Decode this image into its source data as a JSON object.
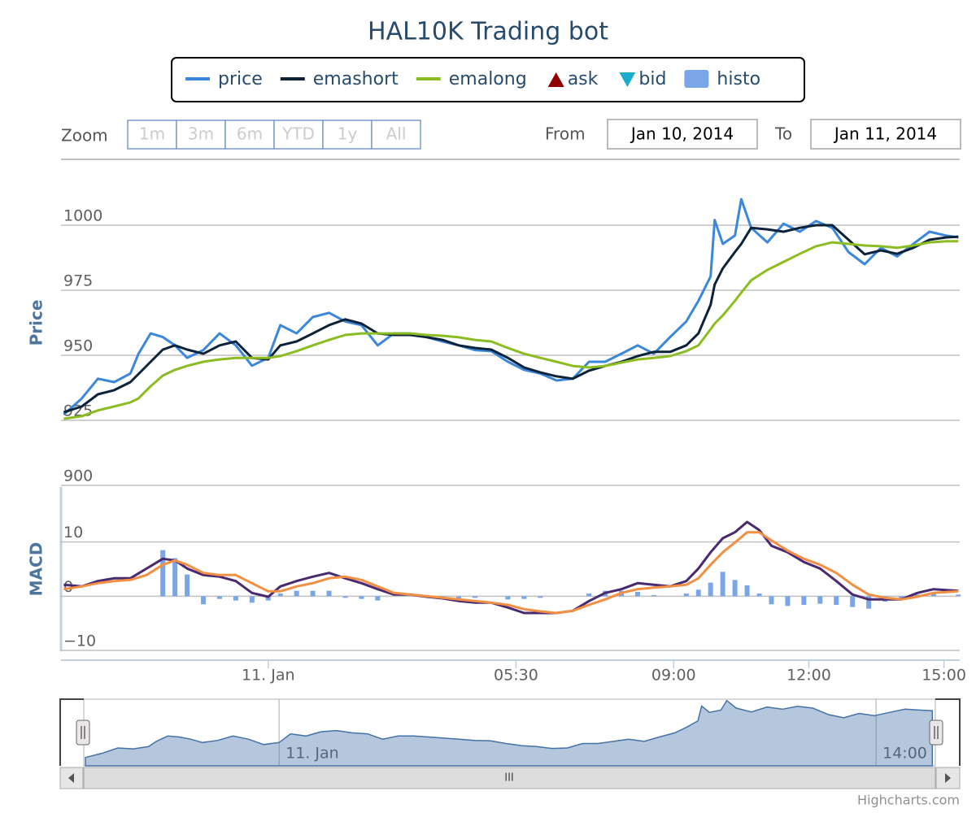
{
  "chart_data": [
    {
      "type": "line",
      "title": "HAL10K Trading bot",
      "y_label": "Price",
      "xlim": [
        -4.6,
        15.35
      ],
      "ylim": [
        900,
        1025
      ],
      "yticks": [
        900,
        925,
        950,
        975,
        1000
      ],
      "grid": true,
      "x": [
        -4.54,
        -4.14,
        -3.78,
        -3.42,
        -3.06,
        -2.88,
        -2.61,
        -2.34,
        -2.07,
        -1.8,
        -1.44,
        -1.08,
        -0.72,
        -0.36,
        0,
        0.27,
        0.63,
        0.99,
        1.35,
        1.71,
        2.07,
        2.43,
        2.79,
        3.15,
        3.51,
        3.87,
        4.23,
        4.59,
        4.95,
        5.32,
        5.68,
        6.04,
        6.4,
        6.76,
        7.12,
        7.48,
        7.84,
        8.2,
        8.56,
        8.92,
        9.28,
        9.55,
        9.82,
        9.91,
        10.09,
        10.36,
        10.5,
        10.72,
        11.08,
        11.44,
        11.8,
        12.16,
        12.52,
        12.88,
        13.24,
        13.6,
        13.96,
        14.32,
        14.68,
        15.05,
        15.32
      ],
      "series": [
        {
          "name": "price",
          "color": "#3a87dc",
          "values": [
            927.2,
            933.4,
            941,
            939.7,
            943,
            950.6,
            958.4,
            957,
            953.8,
            949,
            952,
            958.4,
            953.8,
            946,
            949,
            961.6,
            958.4,
            964.7,
            966.3,
            963,
            961.6,
            953.8,
            958.4,
            958.4,
            957,
            955.3,
            953.8,
            952,
            951.6,
            947.5,
            944.4,
            943,
            940.3,
            941,
            947.5,
            947.5,
            950.6,
            953.8,
            950.6,
            957,
            963,
            970.9,
            980.3,
            1002,
            992.8,
            996,
            1010,
            999,
            993.4,
            1000.6,
            997.5,
            1001.6,
            999,
            989.7,
            985,
            991.3,
            988,
            992.8,
            997.5,
            996,
            995.3
          ]
        },
        {
          "name": "emashort",
          "color": "#0d233a",
          "values": [
            928.1,
            930.3,
            935,
            936.6,
            939.7,
            942.8,
            947.5,
            952.2,
            953.8,
            952.2,
            950.6,
            953.8,
            955.3,
            949,
            948.4,
            953.8,
            955.3,
            958.4,
            961.6,
            963.8,
            962.2,
            958.4,
            957.8,
            957.8,
            957,
            955.9,
            953.8,
            952.8,
            952.2,
            949,
            945.3,
            943.4,
            941.9,
            941,
            944.1,
            945.9,
            947.5,
            949.7,
            951.3,
            951.3,
            953.8,
            958.4,
            969.4,
            977.2,
            983.4,
            989.7,
            992.8,
            999,
            998.4,
            997.5,
            999,
            1000,
            1000,
            994.4,
            988.8,
            990.3,
            989,
            991.3,
            994.4,
            995.3,
            995.6
          ]
        },
        {
          "name": "emalong",
          "color": "#8bbc21",
          "values": [
            925.6,
            926.6,
            928.8,
            930.3,
            931.9,
            933.4,
            938.1,
            942.2,
            944.4,
            945.9,
            947.5,
            948.4,
            949,
            949,
            949,
            949.7,
            951.6,
            953.8,
            955.9,
            957.8,
            958.4,
            958.4,
            958.4,
            958.4,
            957.8,
            957.5,
            956.9,
            955.9,
            955.3,
            952.8,
            950.6,
            949,
            947.5,
            945.9,
            945.3,
            945.9,
            947.2,
            948.4,
            949,
            949.7,
            951.6,
            953.8,
            960,
            962.2,
            965.3,
            970.9,
            974.1,
            978.8,
            982.8,
            985.9,
            989,
            991.9,
            993.4,
            992.8,
            992.2,
            991.9,
            991.3,
            992.2,
            993.4,
            993.8,
            993.8
          ]
        },
        {
          "name": "ask",
          "color": "#910000",
          "symbol": "triangle",
          "values": [
            null,
            null,
            null,
            null,
            null,
            null,
            null,
            null,
            null,
            null,
            null,
            null,
            null,
            null,
            null,
            null,
            null,
            null,
            null,
            null,
            null,
            null,
            null,
            null,
            null,
            null,
            null,
            null,
            null,
            null,
            null,
            null,
            null,
            null,
            null,
            null,
            null,
            null,
            null,
            null,
            null,
            null,
            null,
            null,
            null,
            null,
            null,
            null,
            null,
            null,
            null,
            null,
            null,
            null,
            null,
            null,
            null,
            null,
            null,
            null,
            null
          ]
        },
        {
          "name": "bid",
          "color": "#1aadce",
          "symbol": "triangle-down",
          "values": [
            null,
            null,
            null,
            null,
            null,
            null,
            null,
            null,
            null,
            null,
            null,
            null,
            null,
            null,
            null,
            null,
            null,
            null,
            null,
            null,
            null,
            null,
            null,
            null,
            null,
            null,
            null,
            null,
            null,
            null,
            null,
            null,
            null,
            null,
            null,
            null,
            null,
            null,
            null,
            null,
            null,
            null,
            null,
            null,
            null,
            null,
            null,
            null,
            null,
            null,
            null,
            null,
            null,
            null,
            null,
            null,
            null,
            null,
            null,
            null,
            null
          ]
        }
      ]
    },
    {
      "type": "line",
      "y_label": "MACD",
      "xlim": [
        -4.6,
        15.35
      ],
      "ylim": [
        -10,
        20
      ],
      "yticks": [
        {
          "value": -10,
          "label": "−10"
        },
        0,
        10
      ],
      "grid": true,
      "xticks": [
        {
          "value": 0,
          "label": "11. Jan"
        },
        {
          "value": 5.5,
          "label": "05:30"
        },
        {
          "value": 9,
          "label": "09:00"
        },
        {
          "value": 12,
          "label": "12:00"
        },
        {
          "value": 15,
          "label": "15:00"
        }
      ],
      "x": [
        -4.54,
        -4.14,
        -3.78,
        -3.42,
        -3.06,
        -2.7,
        -2.34,
        -2.07,
        -1.8,
        -1.44,
        -1.08,
        -0.72,
        -0.36,
        0,
        0.27,
        0.63,
        0.99,
        1.35,
        1.71,
        2.07,
        2.43,
        2.79,
        3.15,
        3.51,
        3.87,
        4.23,
        4.59,
        4.95,
        5.32,
        5.68,
        6.04,
        6.4,
        6.76,
        7.12,
        7.48,
        7.84,
        8.2,
        8.56,
        8.92,
        9.28,
        9.55,
        9.82,
        10.09,
        10.36,
        10.63,
        10.9,
        11.17,
        11.53,
        11.89,
        12.25,
        12.61,
        12.97,
        13.33,
        13.69,
        14.05,
        14.41,
        14.77,
        15.32
      ],
      "series": [
        {
          "type": "column",
          "name": "histo",
          "color": "#7aa6e8",
          "symbol": "square",
          "values": [
            0,
            0,
            0,
            0,
            0,
            0,
            8.5,
            7,
            4,
            -1.5,
            -0.5,
            -0.8,
            -1.2,
            -0.8,
            0.5,
            1,
            1,
            1,
            -0.3,
            -0.5,
            -0.8,
            0,
            0,
            0,
            -0.2,
            -0.5,
            -0.3,
            0,
            -0.6,
            -0.5,
            -0.3,
            0,
            0,
            0.5,
            1,
            1,
            0.8,
            0.2,
            0,
            0.5,
            1.2,
            2.5,
            4.5,
            3,
            2,
            0.5,
            -1.5,
            -1.8,
            -1.6,
            -1.4,
            -1.6,
            -2,
            -2.3,
            -1,
            -0.5,
            0.3,
            0.5,
            0.3
          ]
        },
        {
          "color": "#492970",
          "values": [
            2.1,
            1.8,
            2.8,
            3.3,
            3.3,
            5.1,
            6.9,
            6.6,
            5.1,
            3.9,
            3.6,
            2.8,
            0.6,
            -0.1,
            1.8,
            2.8,
            3.6,
            4.3,
            3.3,
            2.4,
            1.3,
            0.3,
            0.3,
            -0.1,
            -0.4,
            -0.9,
            -1.2,
            -1.2,
            -2.1,
            -3.1,
            -3.1,
            -3.1,
            -2.7,
            -0.9,
            0.6,
            1.3,
            2.4,
            2.1,
            1.8,
            2.8,
            5.1,
            8.1,
            10.7,
            11.8,
            13.7,
            12.2,
            9.3,
            8.1,
            6.3,
            5.1,
            2.8,
            0.3,
            -0.6,
            -0.6,
            -0.6,
            0.6,
            1.3,
            1
          ]
        },
        {
          "color": "#f28f43",
          "values": [
            1.3,
            1.8,
            2.4,
            2.8,
            3,
            3.9,
            5.8,
            6.6,
            5.8,
            4.3,
            3.9,
            3.9,
            2.4,
            0.9,
            0.9,
            1.8,
            2.4,
            3.3,
            3.6,
            3,
            1.8,
            0.6,
            0.3,
            0,
            -0.3,
            -0.6,
            -0.9,
            -1.2,
            -1.6,
            -2.4,
            -2.8,
            -3.1,
            -2.7,
            -1.6,
            -0.6,
            0.6,
            1.3,
            1.6,
            1.8,
            2.1,
            3.3,
            5.8,
            8.1,
            9.9,
            11.8,
            11.8,
            10.3,
            8.4,
            6.9,
            5.8,
            4.3,
            2.1,
            0.3,
            -0.3,
            -0.6,
            -0.1,
            0.6,
            0.9
          ]
        }
      ]
    }
  ],
  "range_selector": {
    "zoom_label": "Zoom",
    "buttons": [
      "1m",
      "3m",
      "6m",
      "YTD",
      "1y",
      "All"
    ],
    "from_label": "From",
    "from": "Jan 10, 2014",
    "to_label": "To",
    "to": "Jan 11, 2014"
  },
  "navigator": {
    "xlim": [
      -4.58,
      15.39
    ],
    "ylim": [
      915,
      1012
    ],
    "xticks": [
      {
        "value": 0,
        "label": "11. Jan"
      },
      {
        "value": 14,
        "label": "14:00"
      }
    ],
    "scrollbar_label": "III"
  },
  "credits": "Highcharts.com"
}
